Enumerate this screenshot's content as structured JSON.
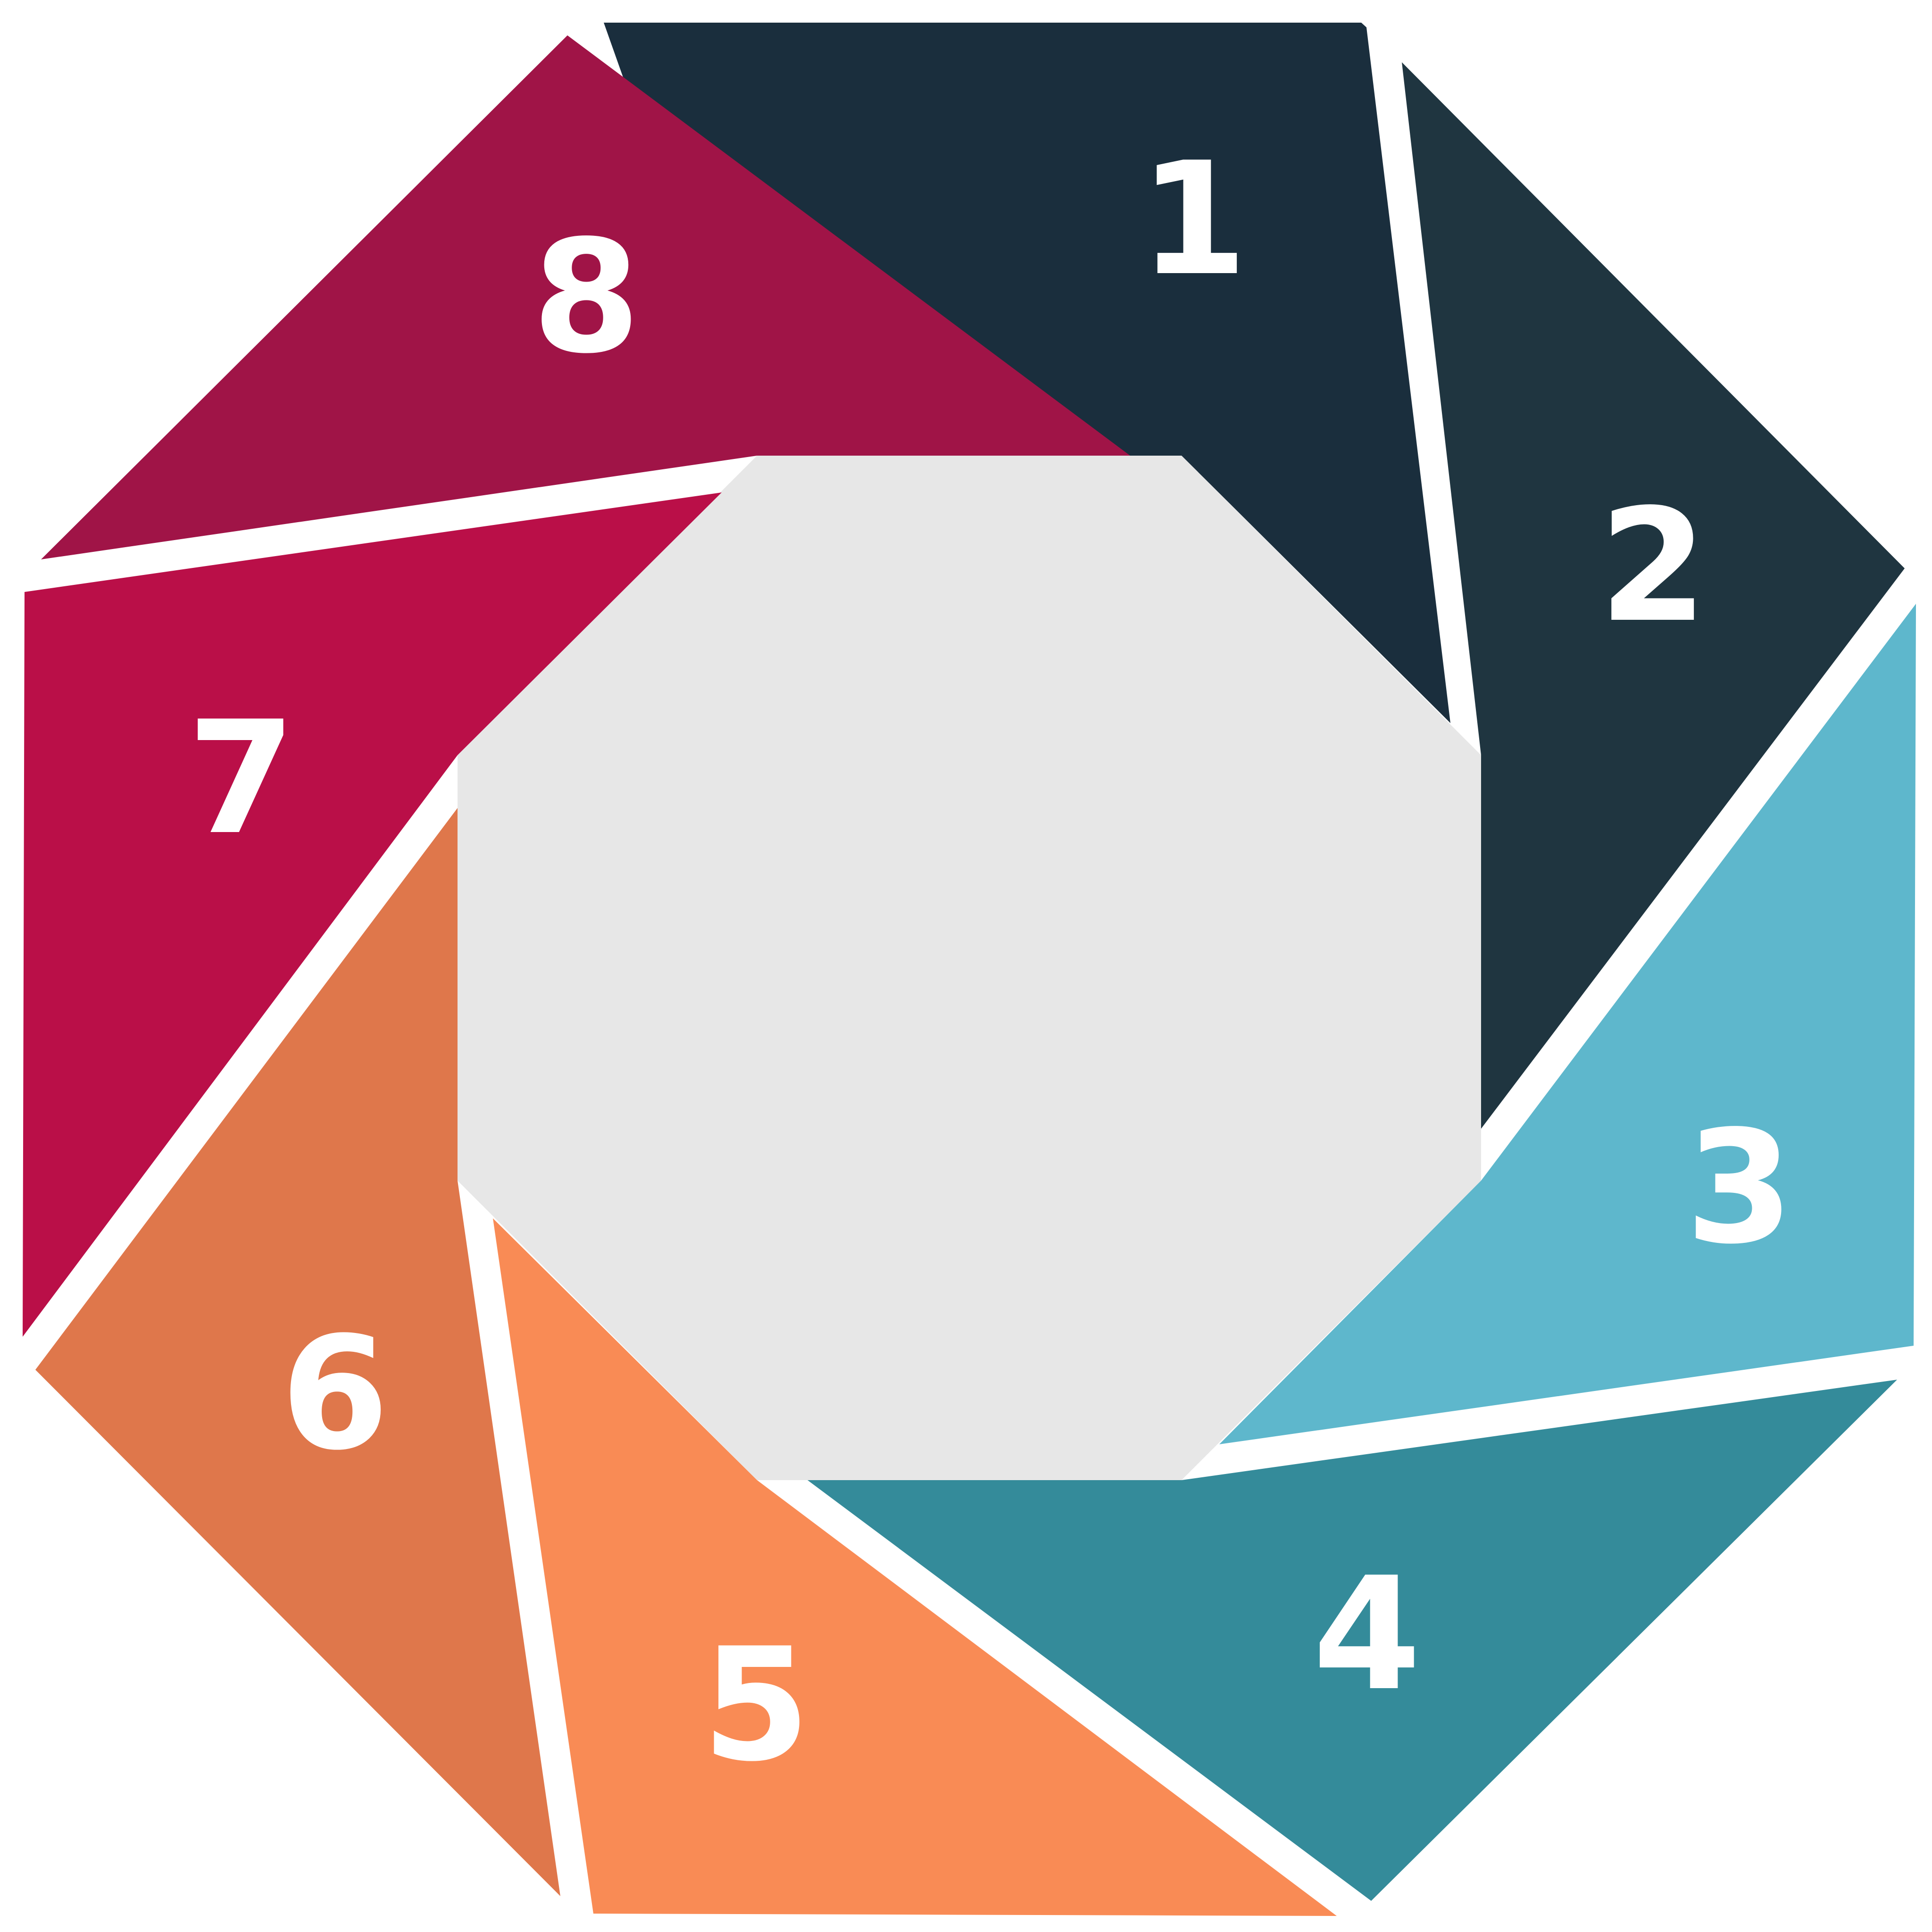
{
  "diagram": {
    "center_color": "#e7e7e7",
    "segments": [
      {
        "label": "1",
        "color": "#1a2e3d"
      },
      {
        "label": "2",
        "color": "#1f3540"
      },
      {
        "label": "3",
        "color": "#5eb7cc"
      },
      {
        "label": "4",
        "color": "#348b9a"
      },
      {
        "label": "5",
        "color": "#f98b55"
      },
      {
        "label": "6",
        "color": "#df774b"
      },
      {
        "label": "7",
        "color": "#ba0f48"
      },
      {
        "label": "8",
        "color": "#a01447"
      }
    ]
  }
}
